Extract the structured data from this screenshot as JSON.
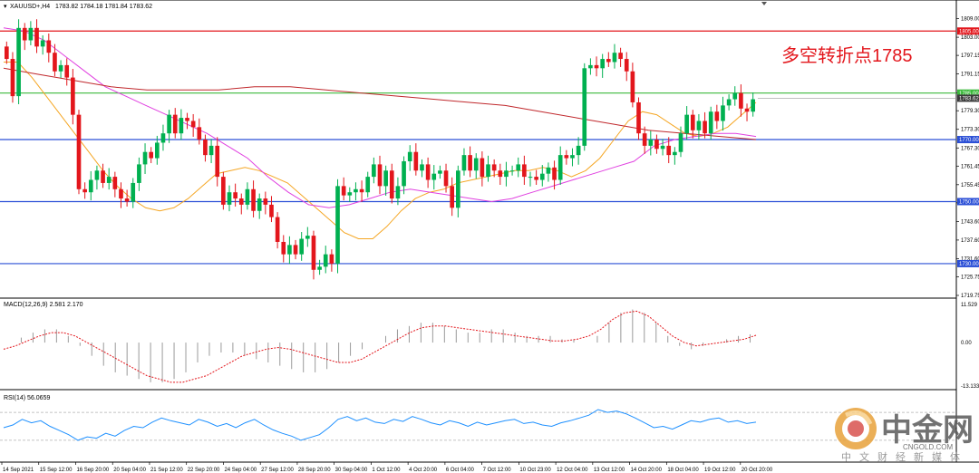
{
  "header": {
    "symbol_label": "XAUUSD+,H4",
    "ohlc_label": "1783.82 1784.18 1781.84 1783.62"
  },
  "annotation": "多空转折点1785",
  "macd_panel": {
    "label": "MACD(12,26,9) 2.581 2.170"
  },
  "rsi_panel": {
    "label": "RSI(14) 56.0659"
  },
  "watermark": {
    "main": "中金网",
    "sub": "CNGOLD.COM",
    "cn": "中文财经新媒体"
  },
  "colors": {
    "bull": "#00b050",
    "bear": "#e3161c",
    "ma_fast": "#f5a623",
    "ma_mid": "#e040e0",
    "ma_slow": "#c0282c",
    "hline_red": "#e3161c",
    "hline_green": "#3cb93c",
    "hline_blue": "#2b4fd6",
    "macd_hist": "#9a9a9a",
    "macd_signal": "#e3161c",
    "rsi_line": "#1e90ff",
    "current_price_label": "#3a3a3a"
  },
  "chart_data": [
    {
      "type": "candlestick",
      "title": "XAUUSD+,H4",
      "timeframe": "H4",
      "ylim": [
        1719.75,
        1811.5
      ],
      "y_ticks": [
        "1809.00",
        "1803.00",
        "1797.15",
        "1791.15",
        "1785.00",
        "1779.30",
        "1773.30",
        "1767.30",
        "1761.45",
        "1755.45",
        "1749.60",
        "1743.60",
        "1737.60",
        "1731.60",
        "1725.75",
        "1719.75"
      ],
      "x_ticks": [
        "14 Sep 2021",
        "15 Sep 12:00",
        "16 Sep 20:00",
        "20 Sep 04:00",
        "21 Sep 12:00",
        "22 Sep 20:00",
        "24 Sep 04:00",
        "27 Sep 12:00",
        "28 Sep 20:00",
        "30 Sep 04:00",
        "1 Oct 12:00",
        "4 Oct 20:00",
        "6 Oct 04:00",
        "7 Oct 12:00",
        "10 Oct 23:00",
        "12 Oct 04:00",
        "13 Oct 12:00",
        "14 Oct 20:00",
        "18 Oct 04:00",
        "19 Oct 12:00",
        "20 Oct 20:00"
      ],
      "current_price": "1783.62",
      "horizontal_lines": [
        {
          "label": "1805.00",
          "value": 1805.0,
          "color": "red"
        },
        {
          "label": "1785.00",
          "value": 1785.0,
          "color": "green"
        },
        {
          "label": "1770.00",
          "value": 1770.0,
          "color": "blue"
        },
        {
          "label": "1750.00",
          "value": 1750.0,
          "color": "blue"
        },
        {
          "label": "1730.00",
          "value": 1730.0,
          "color": "blue"
        }
      ],
      "closes": [
        1796,
        1784,
        1806,
        1802,
        1806,
        1800,
        1802,
        1798,
        1792,
        1794,
        1790,
        1778,
        1754,
        1753,
        1757,
        1760,
        1756,
        1758,
        1754,
        1751,
        1750,
        1756,
        1762,
        1766,
        1764,
        1769,
        1772,
        1778,
        1772,
        1777,
        1776,
        1774,
        1770,
        1765,
        1768,
        1758,
        1749,
        1753,
        1751,
        1749,
        1754,
        1747,
        1751,
        1749,
        1745,
        1737,
        1733,
        1736,
        1733,
        1738,
        1739,
        1728,
        1729,
        1733,
        1730,
        1755,
        1752,
        1753,
        1754,
        1753,
        1758,
        1762,
        1755,
        1760,
        1751,
        1755,
        1763,
        1766,
        1760,
        1762,
        1757,
        1759,
        1760,
        1755,
        1748,
        1760,
        1765,
        1760,
        1764,
        1758,
        1762,
        1760,
        1758,
        1760,
        1760,
        1762,
        1758,
        1758,
        1757,
        1759,
        1761,
        1757,
        1765,
        1764,
        1765,
        1768,
        1793,
        1794,
        1793,
        1796,
        1795,
        1798,
        1796,
        1792,
        1782,
        1772,
        1768,
        1770,
        1767,
        1768,
        1765,
        1766,
        1772,
        1778,
        1773,
        1776,
        1772,
        1779,
        1776,
        1781,
        1783,
        1785,
        1780,
        1779,
        1783
      ],
      "moving_averages": [
        {
          "role": "fast",
          "values": [
            1795,
            1795,
            1790,
            1784,
            1778,
            1772,
            1766,
            1760,
            1755,
            1751,
            1748,
            1747,
            1748,
            1751,
            1755,
            1759,
            1760,
            1761,
            1760,
            1758,
            1756,
            1752,
            1748,
            1744,
            1740,
            1738,
            1738,
            1742,
            1747,
            1751,
            1753,
            1754,
            1756,
            1757,
            1758,
            1759,
            1760,
            1760,
            1761,
            1760,
            1758,
            1760,
            1764,
            1770,
            1776,
            1779,
            1778,
            1775,
            1772,
            1771,
            1772,
            1774,
            1778,
            1782
          ]
        },
        {
          "role": "mid",
          "values": [
            1806,
            1805,
            1802,
            1797,
            1792,
            1787,
            1784,
            1781,
            1778,
            1775,
            1772,
            1768,
            1764,
            1758,
            1753,
            1749,
            1748,
            1749,
            1751,
            1753,
            1754,
            1753,
            1752,
            1751,
            1750,
            1751,
            1753,
            1755,
            1757,
            1759,
            1761,
            1763,
            1768,
            1770,
            1771,
            1772,
            1772,
            1771
          ]
        },
        {
          "role": "slow",
          "values": [
            1793,
            1791,
            1789,
            1787,
            1786,
            1786,
            1786,
            1787,
            1787,
            1786,
            1785,
            1784,
            1783,
            1782,
            1781,
            1779,
            1777,
            1775,
            1773,
            1772,
            1771,
            1770
          ]
        }
      ]
    },
    {
      "type": "bar+line",
      "name": "MACD",
      "label": "MACD(12,26,9) 2.581 2.170",
      "y_ticks": [
        "11.529",
        "0.00",
        "-13.133"
      ],
      "ylim": [
        -13.133,
        11.529
      ],
      "histogram": [
        0,
        1.5,
        3,
        4,
        4,
        2,
        -1,
        -4,
        -7,
        -9,
        -10,
        -11,
        -12,
        -12,
        -11,
        -9,
        -6,
        -4,
        -3,
        -3,
        -4,
        -5,
        -6,
        -7,
        -8,
        -9,
        -9,
        -8,
        -6,
        -4,
        -2,
        0,
        2,
        4,
        5,
        6,
        6,
        5,
        4,
        3,
        3,
        4,
        4,
        3,
        2,
        2,
        2,
        1,
        1,
        0,
        2,
        6,
        9,
        10,
        9,
        6,
        2,
        -1,
        -2,
        -1,
        0,
        1,
        2,
        2.5
      ],
      "signal": [
        -2,
        -1,
        0.5,
        2,
        3,
        3,
        2,
        0,
        -2,
        -4,
        -6,
        -8,
        -10,
        -11,
        -12,
        -12,
        -11,
        -10,
        -8,
        -6,
        -4,
        -3,
        -2,
        -1.5,
        -2,
        -3,
        -4,
        -5,
        -6,
        -6,
        -5,
        -3,
        -1,
        1,
        3,
        4.5,
        5,
        5,
        4.5,
        4,
        3.5,
        3,
        2.5,
        2,
        1.5,
        1,
        0.5,
        0.5,
        1,
        2,
        4,
        7,
        9,
        9.5,
        8,
        5,
        2,
        0,
        -1,
        -0.5,
        0,
        0.5,
        1,
        2.2
      ]
    },
    {
      "type": "line",
      "name": "RSI",
      "label": "RSI(14) 56.0659",
      "ylim": [
        0,
        100
      ],
      "levels": [
        30,
        70
      ],
      "values": [
        48,
        52,
        60,
        55,
        58,
        50,
        44,
        38,
        30,
        35,
        33,
        40,
        36,
        44,
        50,
        48,
        56,
        62,
        58,
        55,
        52,
        60,
        56,
        50,
        54,
        48,
        55,
        60,
        52,
        45,
        40,
        36,
        30,
        34,
        38,
        48,
        60,
        64,
        58,
        62,
        56,
        54,
        60,
        57,
        64,
        60,
        55,
        52,
        58,
        55,
        50,
        56,
        52,
        55,
        58,
        60,
        54,
        56,
        52,
        50,
        55,
        58,
        62,
        66,
        74,
        70,
        72,
        68,
        62,
        55,
        48,
        50,
        46,
        52,
        58,
        56,
        60,
        62,
        56,
        58,
        54,
        56
      ]
    }
  ]
}
